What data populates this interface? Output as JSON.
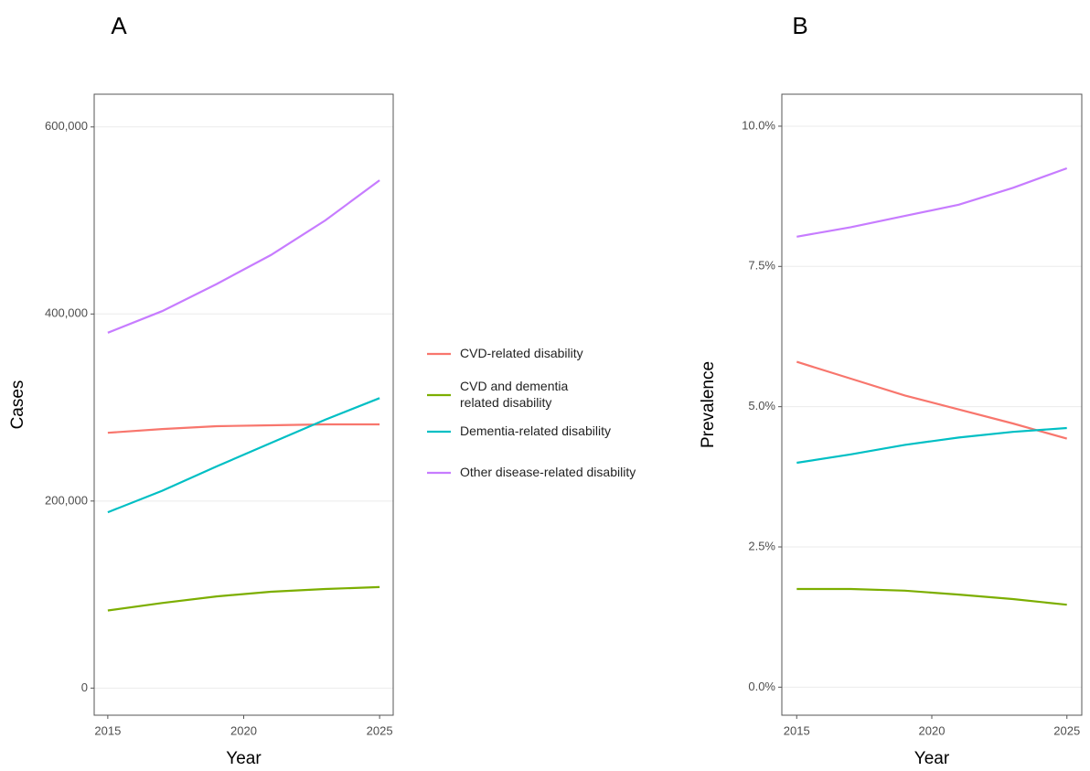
{
  "chart_data": [
    {
      "type": "line",
      "title": "A",
      "x_label": "Year",
      "y_label": "Cases",
      "x": [
        2015,
        2017,
        2019,
        2021,
        2023,
        2025
      ],
      "xlim": [
        2014.5,
        2025.5
      ],
      "xticks": [
        2015,
        2020,
        2025
      ],
      "ylim": [
        -29000,
        635000
      ],
      "yticks": [
        0,
        {
          "value": 200000,
          "label": "200,000"
        },
        {
          "value": 400000,
          "label": "400,000"
        },
        {
          "value": 600000,
          "label": "600,000"
        }
      ],
      "grid": true,
      "series": [
        {
          "name": "CVD-related disability",
          "color": "#f8766d",
          "values": [
            273000,
            277000,
            280000,
            281000,
            282000,
            282000
          ]
        },
        {
          "name": "CVD and dementia\nrelated disability",
          "color": "#7cae00",
          "values": [
            83000,
            91000,
            98000,
            103000,
            106000,
            108000
          ]
        },
        {
          "name": "Dementia-related disability",
          "color": "#00bfc4",
          "values": [
            188000,
            211000,
            237000,
            262000,
            287000,
            310000
          ]
        },
        {
          "name": "Other disease-related disability",
          "color": "#c77cff",
          "values": [
            380000,
            403000,
            432000,
            463000,
            500000,
            543000
          ]
        }
      ]
    },
    {
      "type": "line",
      "title": "B",
      "x_label": "Year",
      "y_label": "Prevalence",
      "x": [
        2015,
        2017,
        2019,
        2021,
        2023,
        2025
      ],
      "xlim": [
        2014.45,
        2025.55
      ],
      "xticks": [
        2015,
        2020,
        2025
      ],
      "ylim": [
        -0.5,
        10.57
      ],
      "yticks": [
        {
          "value": 0,
          "label": "0.0%"
        },
        {
          "value": 2.5,
          "label": "2.5%"
        },
        {
          "value": 5,
          "label": "5.0%"
        },
        {
          "value": 7.5,
          "label": "7.5%"
        },
        {
          "value": 10,
          "label": "10.0%"
        }
      ],
      "grid": true,
      "series": [
        {
          "color": "#f8766d",
          "values": [
            5.8,
            5.5,
            5.2,
            4.95,
            4.7,
            4.43
          ]
        },
        {
          "color": "#7cae00",
          "values": [
            1.75,
            1.75,
            1.72,
            1.65,
            1.57,
            1.47
          ]
        },
        {
          "color": "#00bfc4",
          "values": [
            4.0,
            4.15,
            4.32,
            4.45,
            4.55,
            4.62
          ]
        },
        {
          "color": "#c77cff",
          "values": [
            8.03,
            8.2,
            8.4,
            8.6,
            8.9,
            9.25
          ]
        }
      ]
    }
  ]
}
